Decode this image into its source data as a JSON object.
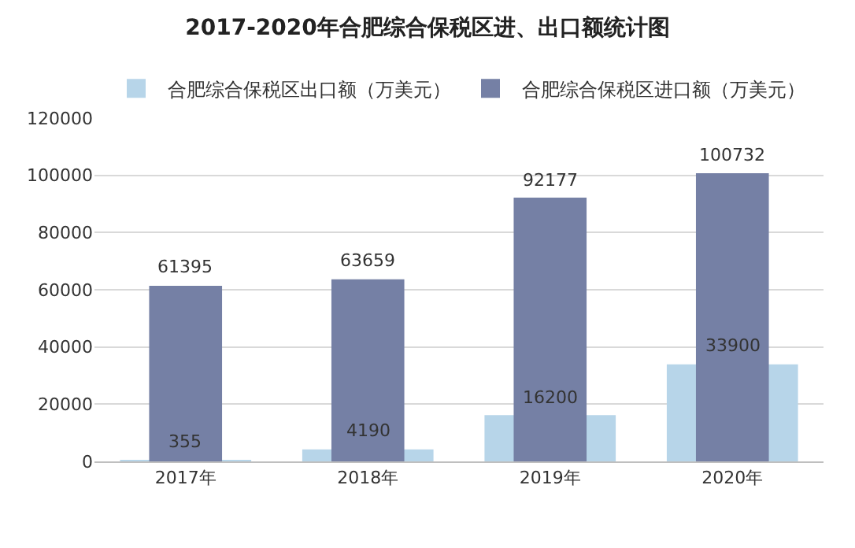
{
  "chart_data": {
    "type": "bar",
    "title": "2017-2020年合肥综合保税区进、出口额统计图",
    "categories": [
      "2017年",
      "2018年",
      "2019年",
      "2020年"
    ],
    "series": [
      {
        "name": "合肥综合保税区出口额（万美元）",
        "color": "#b7d5e9",
        "values": [
          355,
          4190,
          16200,
          33900
        ]
      },
      {
        "name": "合肥综合保税区进口额（万美元）",
        "color": "#7580a5",
        "values": [
          61395,
          63659,
          92177,
          100732
        ]
      }
    ],
    "ylim": [
      0,
      120000
    ],
    "yticks": [
      0,
      20000,
      40000,
      60000,
      80000,
      100000,
      120000
    ],
    "grid": "y",
    "legend": "top",
    "data_labels": true
  }
}
